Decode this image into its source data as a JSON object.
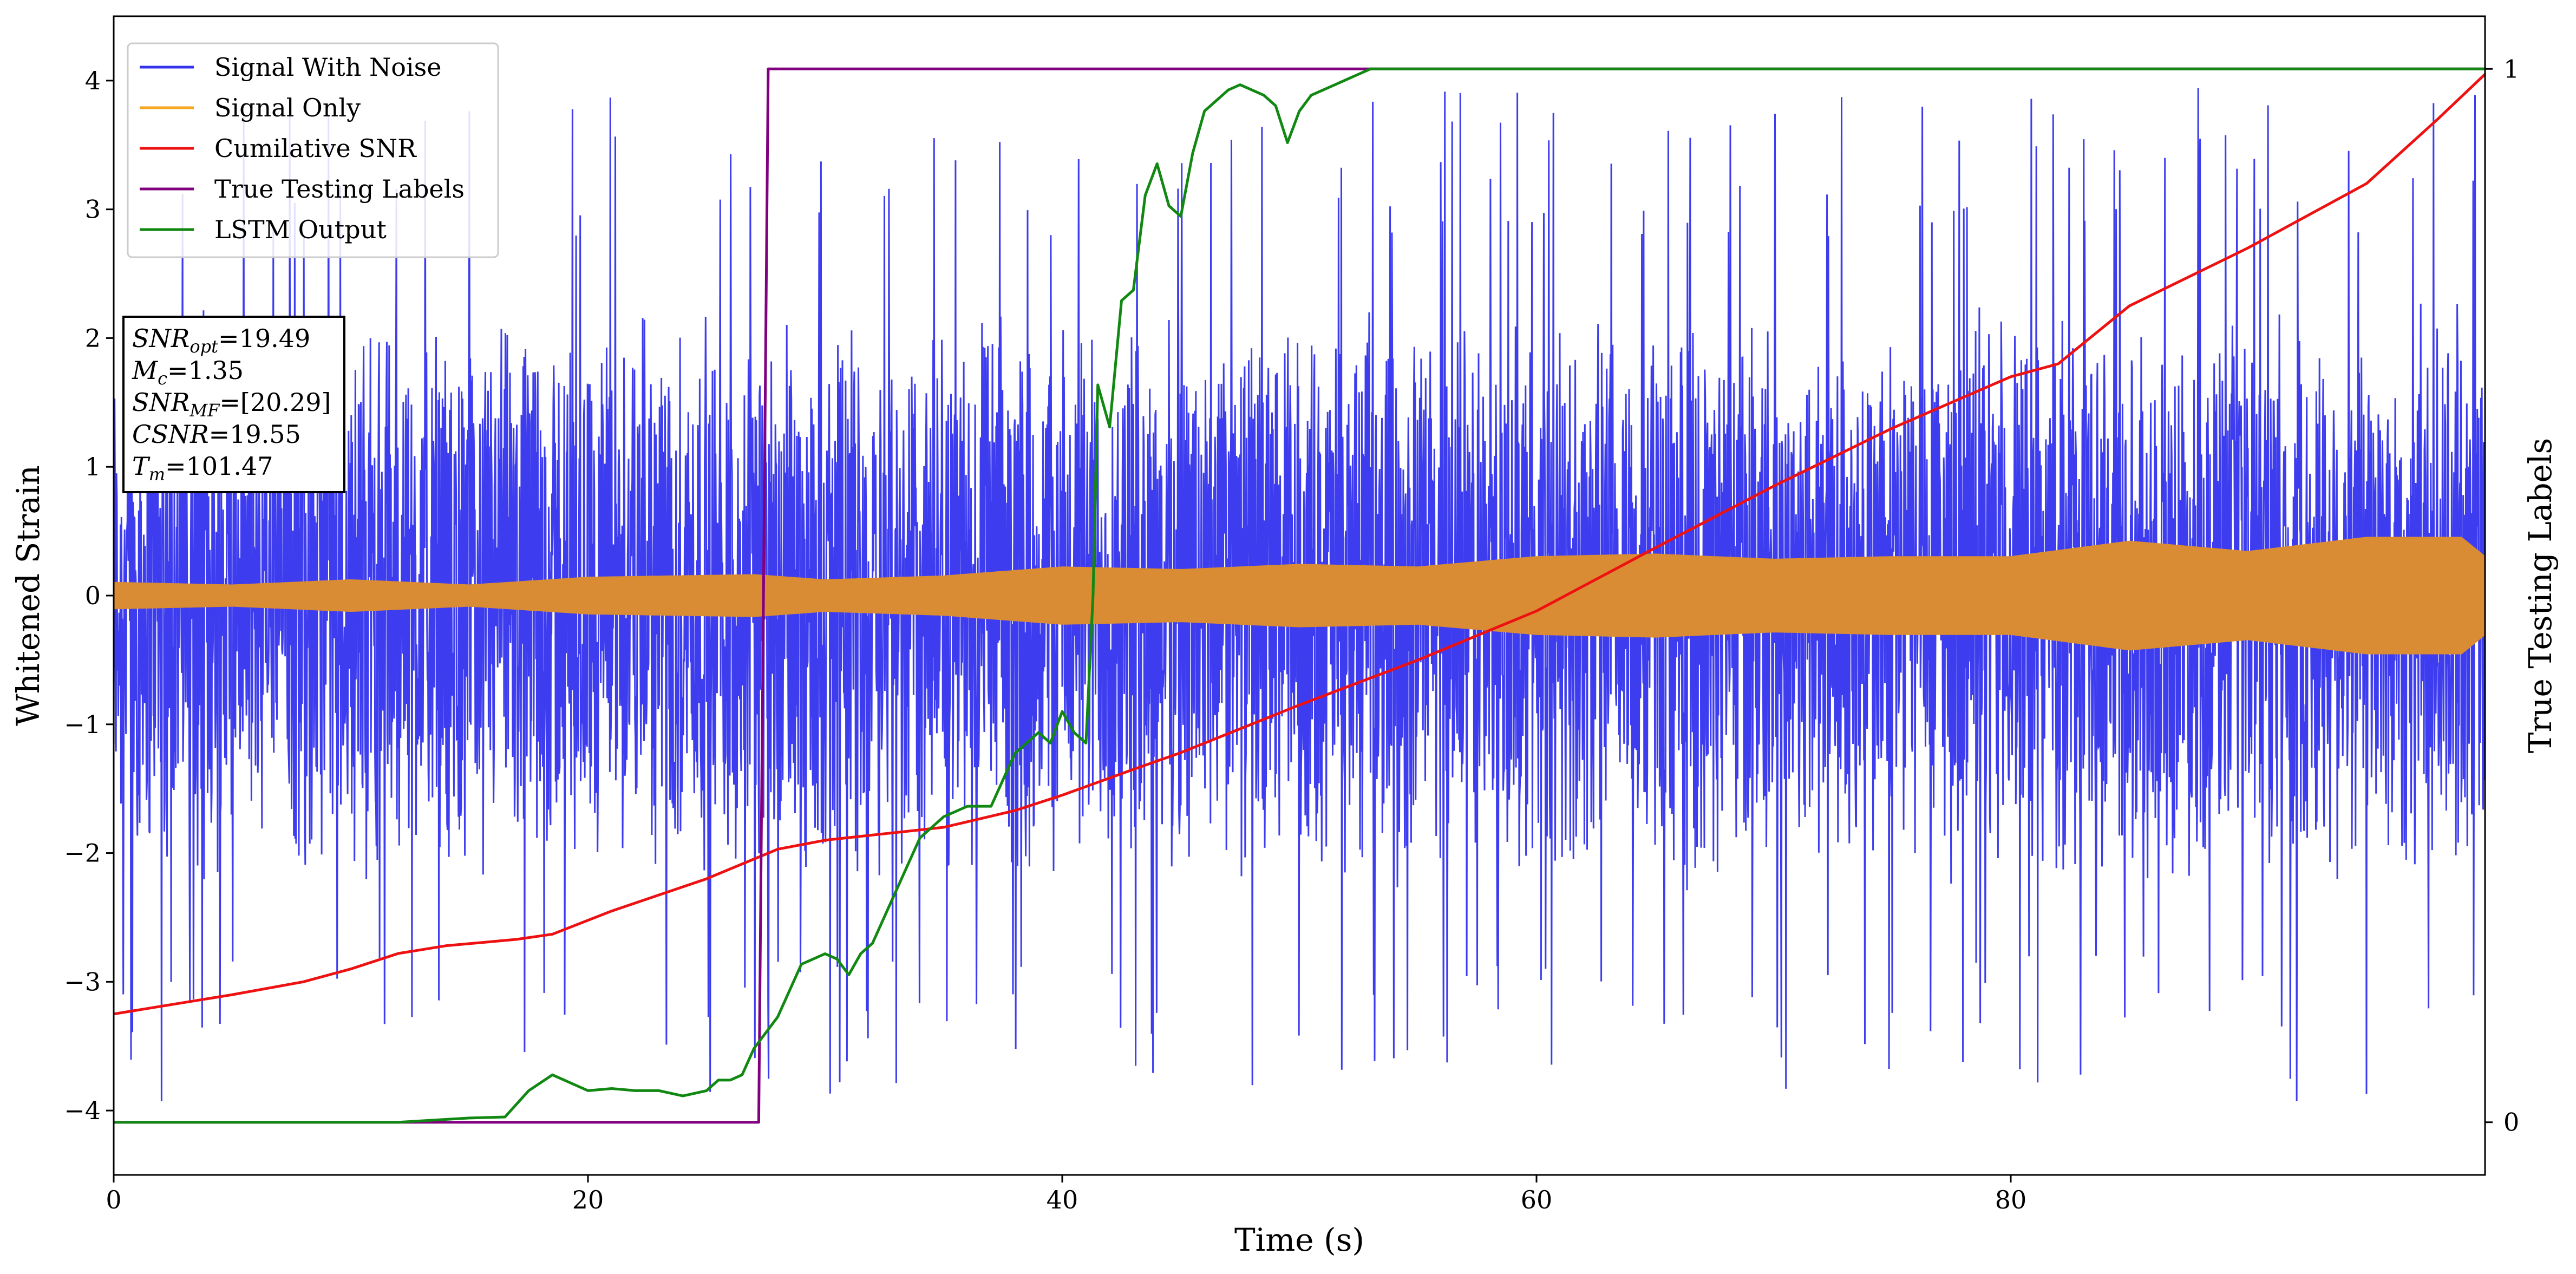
{
  "chart_data": {
    "type": "line",
    "xlabel": "Time (s)",
    "ylabel": "Whitened Strain",
    "y2label": "True Testing Labels",
    "xlim": [
      0,
      100
    ],
    "ylim": [
      -4.5,
      4.5
    ],
    "y2lim": [
      -0.05,
      1.05
    ],
    "xticks": [
      0,
      20,
      40,
      60,
      80
    ],
    "yticks": [
      -4,
      -3,
      -2,
      -1,
      0,
      1,
      2,
      3,
      4
    ],
    "y2ticks": [
      0,
      1
    ],
    "legend": {
      "placement": "upper-left",
      "entries": [
        {
          "label": "Signal With Noise",
          "color": "#3333ee"
        },
        {
          "label": "Signal Only",
          "color": "#f5a623"
        },
        {
          "label": "Cumilative SNR",
          "color": "#ee1111"
        },
        {
          "label": "True Testing Labels",
          "color": "#800080"
        },
        {
          "label": "LSTM Output",
          "color": "#118811"
        }
      ]
    },
    "annotation": {
      "placement": "left",
      "lines": [
        {
          "var": "SNR",
          "sub": "opt",
          "value": "=19.49"
        },
        {
          "var": "M",
          "sub": "c",
          "value": "=1.35"
        },
        {
          "var": "SNR",
          "sub": "MF",
          "value": "=[20.29]"
        },
        {
          "var": "CSNR",
          "sub": "",
          "value": "=19.55"
        },
        {
          "var": "T",
          "sub": "m",
          "value": "=101.47"
        }
      ]
    },
    "series": [
      {
        "name": "Signal With Noise",
        "axis": "left",
        "color": "#3333ee",
        "kind": "dense-noise",
        "envelope": {
          "typical_min": -2.3,
          "typical_max": 2.3,
          "peak_min": -3.95,
          "peak_max": 3.95
        }
      },
      {
        "name": "Signal Only",
        "axis": "left",
        "color": "#d98c33",
        "kind": "oscillation-envelope",
        "x": [
          0,
          5,
          10,
          15,
          20,
          27,
          30,
          35,
          40,
          45,
          50,
          55,
          60,
          65,
          70,
          75,
          80,
          85,
          90,
          95,
          99,
          100
        ],
        "amplitude": [
          0.1,
          0.08,
          0.12,
          0.08,
          0.14,
          0.16,
          0.12,
          0.15,
          0.22,
          0.2,
          0.24,
          0.22,
          0.3,
          0.32,
          0.28,
          0.3,
          0.3,
          0.42,
          0.34,
          0.45,
          0.45,
          0.3
        ]
      },
      {
        "name": "Cumilative SNR",
        "axis": "left",
        "color": "#ee1111",
        "x": [
          0,
          5,
          8,
          10,
          12,
          14,
          17,
          18.5,
          21,
          25,
          28,
          30,
          35,
          38,
          40,
          43,
          45,
          50,
          55,
          60,
          65,
          70,
          75,
          80,
          82,
          85,
          90,
          95,
          98,
          100
        ],
        "y": [
          -3.25,
          -3.1,
          -3.0,
          -2.9,
          -2.78,
          -2.72,
          -2.67,
          -2.63,
          -2.45,
          -2.2,
          -1.97,
          -1.9,
          -1.8,
          -1.67,
          -1.55,
          -1.35,
          -1.22,
          -0.85,
          -0.5,
          -0.12,
          0.37,
          0.85,
          1.3,
          1.7,
          1.8,
          2.25,
          2.7,
          3.2,
          3.7,
          4.05
        ]
      },
      {
        "name": "True Testing Labels",
        "axis": "right",
        "color": "#800080",
        "x": [
          0,
          27.2,
          27.6,
          100
        ],
        "y": [
          0,
          0,
          1,
          1
        ]
      },
      {
        "name": "LSTM Output",
        "axis": "right",
        "color": "#118811",
        "x": [
          0,
          12,
          15,
          16.5,
          17.5,
          18.5,
          19,
          20,
          21,
          22,
          23,
          24,
          25,
          25.5,
          26,
          26.5,
          27,
          28,
          29,
          30,
          30.5,
          31,
          31.5,
          32,
          33,
          34,
          35,
          36,
          37,
          38,
          38.5,
          39,
          39.5,
          40,
          40.5,
          41,
          41.3,
          41.5,
          42,
          42.5,
          43,
          43.5,
          44,
          44.5,
          45,
          45.5,
          46,
          47,
          47.5,
          48,
          48.5,
          49,
          49.5,
          50,
          50.5,
          51,
          51.5,
          52,
          52.5,
          53,
          55,
          57,
          60,
          100
        ],
        "y": [
          0,
          0,
          0.004,
          0.005,
          0.03,
          0.045,
          0.04,
          0.03,
          0.032,
          0.03,
          0.03,
          0.025,
          0.03,
          0.04,
          0.04,
          0.045,
          0.07,
          0.1,
          0.15,
          0.16,
          0.155,
          0.14,
          0.16,
          0.17,
          0.22,
          0.27,
          0.29,
          0.3,
          0.3,
          0.35,
          0.36,
          0.37,
          0.36,
          0.39,
          0.37,
          0.36,
          0.5,
          0.7,
          0.66,
          0.78,
          0.79,
          0.88,
          0.91,
          0.87,
          0.86,
          0.92,
          0.96,
          0.98,
          0.985,
          0.98,
          0.975,
          0.965,
          0.93,
          0.96,
          0.975,
          0.98,
          0.985,
          0.99,
          0.995,
          1.0,
          1.0,
          1.0,
          1.0,
          1.0
        ]
      }
    ]
  }
}
